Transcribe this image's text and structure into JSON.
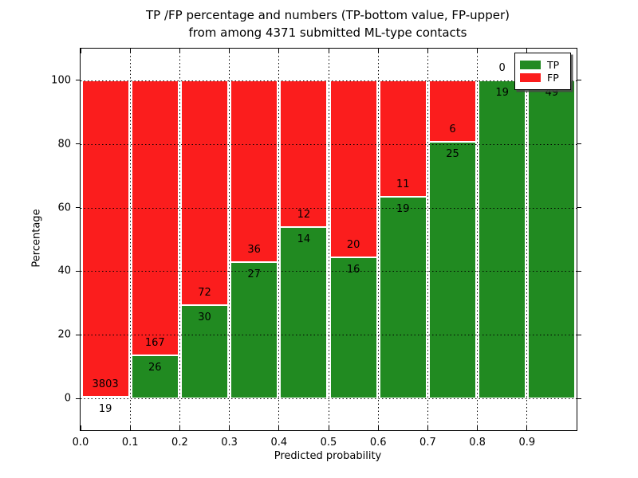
{
  "chart_data": {
    "type": "bar",
    "stacked": true,
    "normalized": "percent_within_bin",
    "title": "TP /FP percentage and numbers (TP-bottom value, FP-upper)\nfrom among 4371 submitted ML-type contacts",
    "xlabel": "Predicted probability",
    "ylabel": "Percentage",
    "total_contacts": 4371,
    "x_tick_labels": [
      "0.0",
      "0.1",
      "0.2",
      "0.3",
      "0.4",
      "0.5",
      "0.6",
      "0.7",
      "0.8",
      "0.9"
    ],
    "y_ticks": [
      0,
      20,
      40,
      60,
      80,
      100
    ],
    "ylim": [
      -10,
      110
    ],
    "grid": true,
    "colors": {
      "tp": "#218a21",
      "fp": "#fb1d1d"
    },
    "legend": {
      "position": "upper right",
      "entries": [
        {
          "label": "TP",
          "color": "#218a21"
        },
        {
          "label": "FP",
          "color": "#fb1d1d"
        }
      ]
    },
    "bins": [
      {
        "x_range": [
          0.0,
          0.1
        ],
        "tp": 19,
        "fp": 3803
      },
      {
        "x_range": [
          0.1,
          0.2
        ],
        "tp": 26,
        "fp": 167
      },
      {
        "x_range": [
          0.2,
          0.3
        ],
        "tp": 30,
        "fp": 72
      },
      {
        "x_range": [
          0.3,
          0.4
        ],
        "tp": 27,
        "fp": 36
      },
      {
        "x_range": [
          0.4,
          0.5
        ],
        "tp": 14,
        "fp": 12
      },
      {
        "x_range": [
          0.5,
          0.6
        ],
        "tp": 16,
        "fp": 20
      },
      {
        "x_range": [
          0.6,
          0.7
        ],
        "tp": 19,
        "fp": 11
      },
      {
        "x_range": [
          0.7,
          0.8
        ],
        "tp": 25,
        "fp": 6
      },
      {
        "x_range": [
          0.8,
          0.9
        ],
        "tp": 19,
        "fp": 0
      },
      {
        "x_range": [
          0.9,
          1.0
        ],
        "tp": 49,
        "fp": 0
      }
    ]
  }
}
